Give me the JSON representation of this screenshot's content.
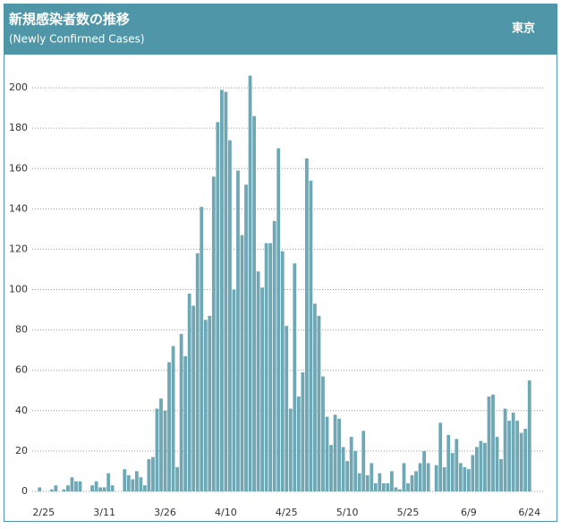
{
  "chart_data": {
    "type": "bar",
    "title": "新規感染者数の推移",
    "subtitle": "(Newly Confirmed Cases)",
    "region": "東京",
    "color": "#6fa8b5",
    "grid": true,
    "ylim": [
      -4,
      216
    ],
    "yticks": [
      0,
      20,
      40,
      60,
      80,
      100,
      120,
      140,
      160,
      180,
      200
    ],
    "categories": [
      null,
      "2/25",
      null,
      null,
      null,
      null,
      null,
      null,
      null,
      null,
      null,
      null,
      null,
      null,
      null,
      null,
      "3/11",
      null,
      null,
      null,
      null,
      null,
      null,
      null,
      null,
      null,
      null,
      null,
      null,
      null,
      null,
      "3/26",
      null,
      null,
      null,
      null,
      null,
      null,
      null,
      null,
      null,
      null,
      null,
      null,
      null,
      null,
      "4/10",
      null,
      null,
      null,
      null,
      null,
      null,
      null,
      null,
      null,
      null,
      null,
      null,
      null,
      null,
      "4/25",
      null,
      null,
      null,
      null,
      null,
      null,
      null,
      null,
      null,
      null,
      null,
      null,
      null,
      null,
      "5/10",
      null,
      null,
      null,
      null,
      null,
      null,
      null,
      null,
      null,
      null,
      null,
      null,
      null,
      null,
      "5/25",
      null,
      null,
      null,
      null,
      null,
      null,
      null,
      null,
      null,
      null,
      null,
      null,
      null,
      null,
      "6/9",
      null,
      null,
      null,
      null,
      null,
      null,
      null,
      null,
      null,
      null,
      null,
      null,
      null,
      null,
      "6/24"
    ],
    "values": [
      2,
      0,
      0,
      1,
      3,
      0,
      1,
      3,
      7,
      5,
      5,
      0,
      0,
      3,
      5,
      2,
      2,
      9,
      3,
      0,
      0,
      11,
      8,
      6,
      10,
      7,
      3,
      16,
      17,
      41,
      46,
      40,
      64,
      72,
      12,
      78,
      67,
      98,
      92,
      118,
      141,
      85,
      87,
      156,
      183,
      199,
      198,
      174,
      100,
      159,
      127,
      152,
      206,
      186,
      109,
      101,
      123,
      123,
      134,
      170,
      119,
      82,
      41,
      113,
      47,
      59,
      165,
      154,
      93,
      87,
      57,
      37,
      23,
      38,
      36,
      22,
      15,
      27,
      20,
      9,
      30,
      8,
      14,
      4,
      9,
      4,
      4,
      10,
      2,
      1,
      14,
      4,
      8,
      10,
      14,
      20,
      14,
      0,
      13,
      34,
      12,
      28,
      19,
      26,
      14,
      12,
      11,
      18,
      22,
      25,
      24,
      47,
      48,
      27,
      16,
      41,
      35,
      39,
      35,
      29,
      31,
      55
    ]
  }
}
